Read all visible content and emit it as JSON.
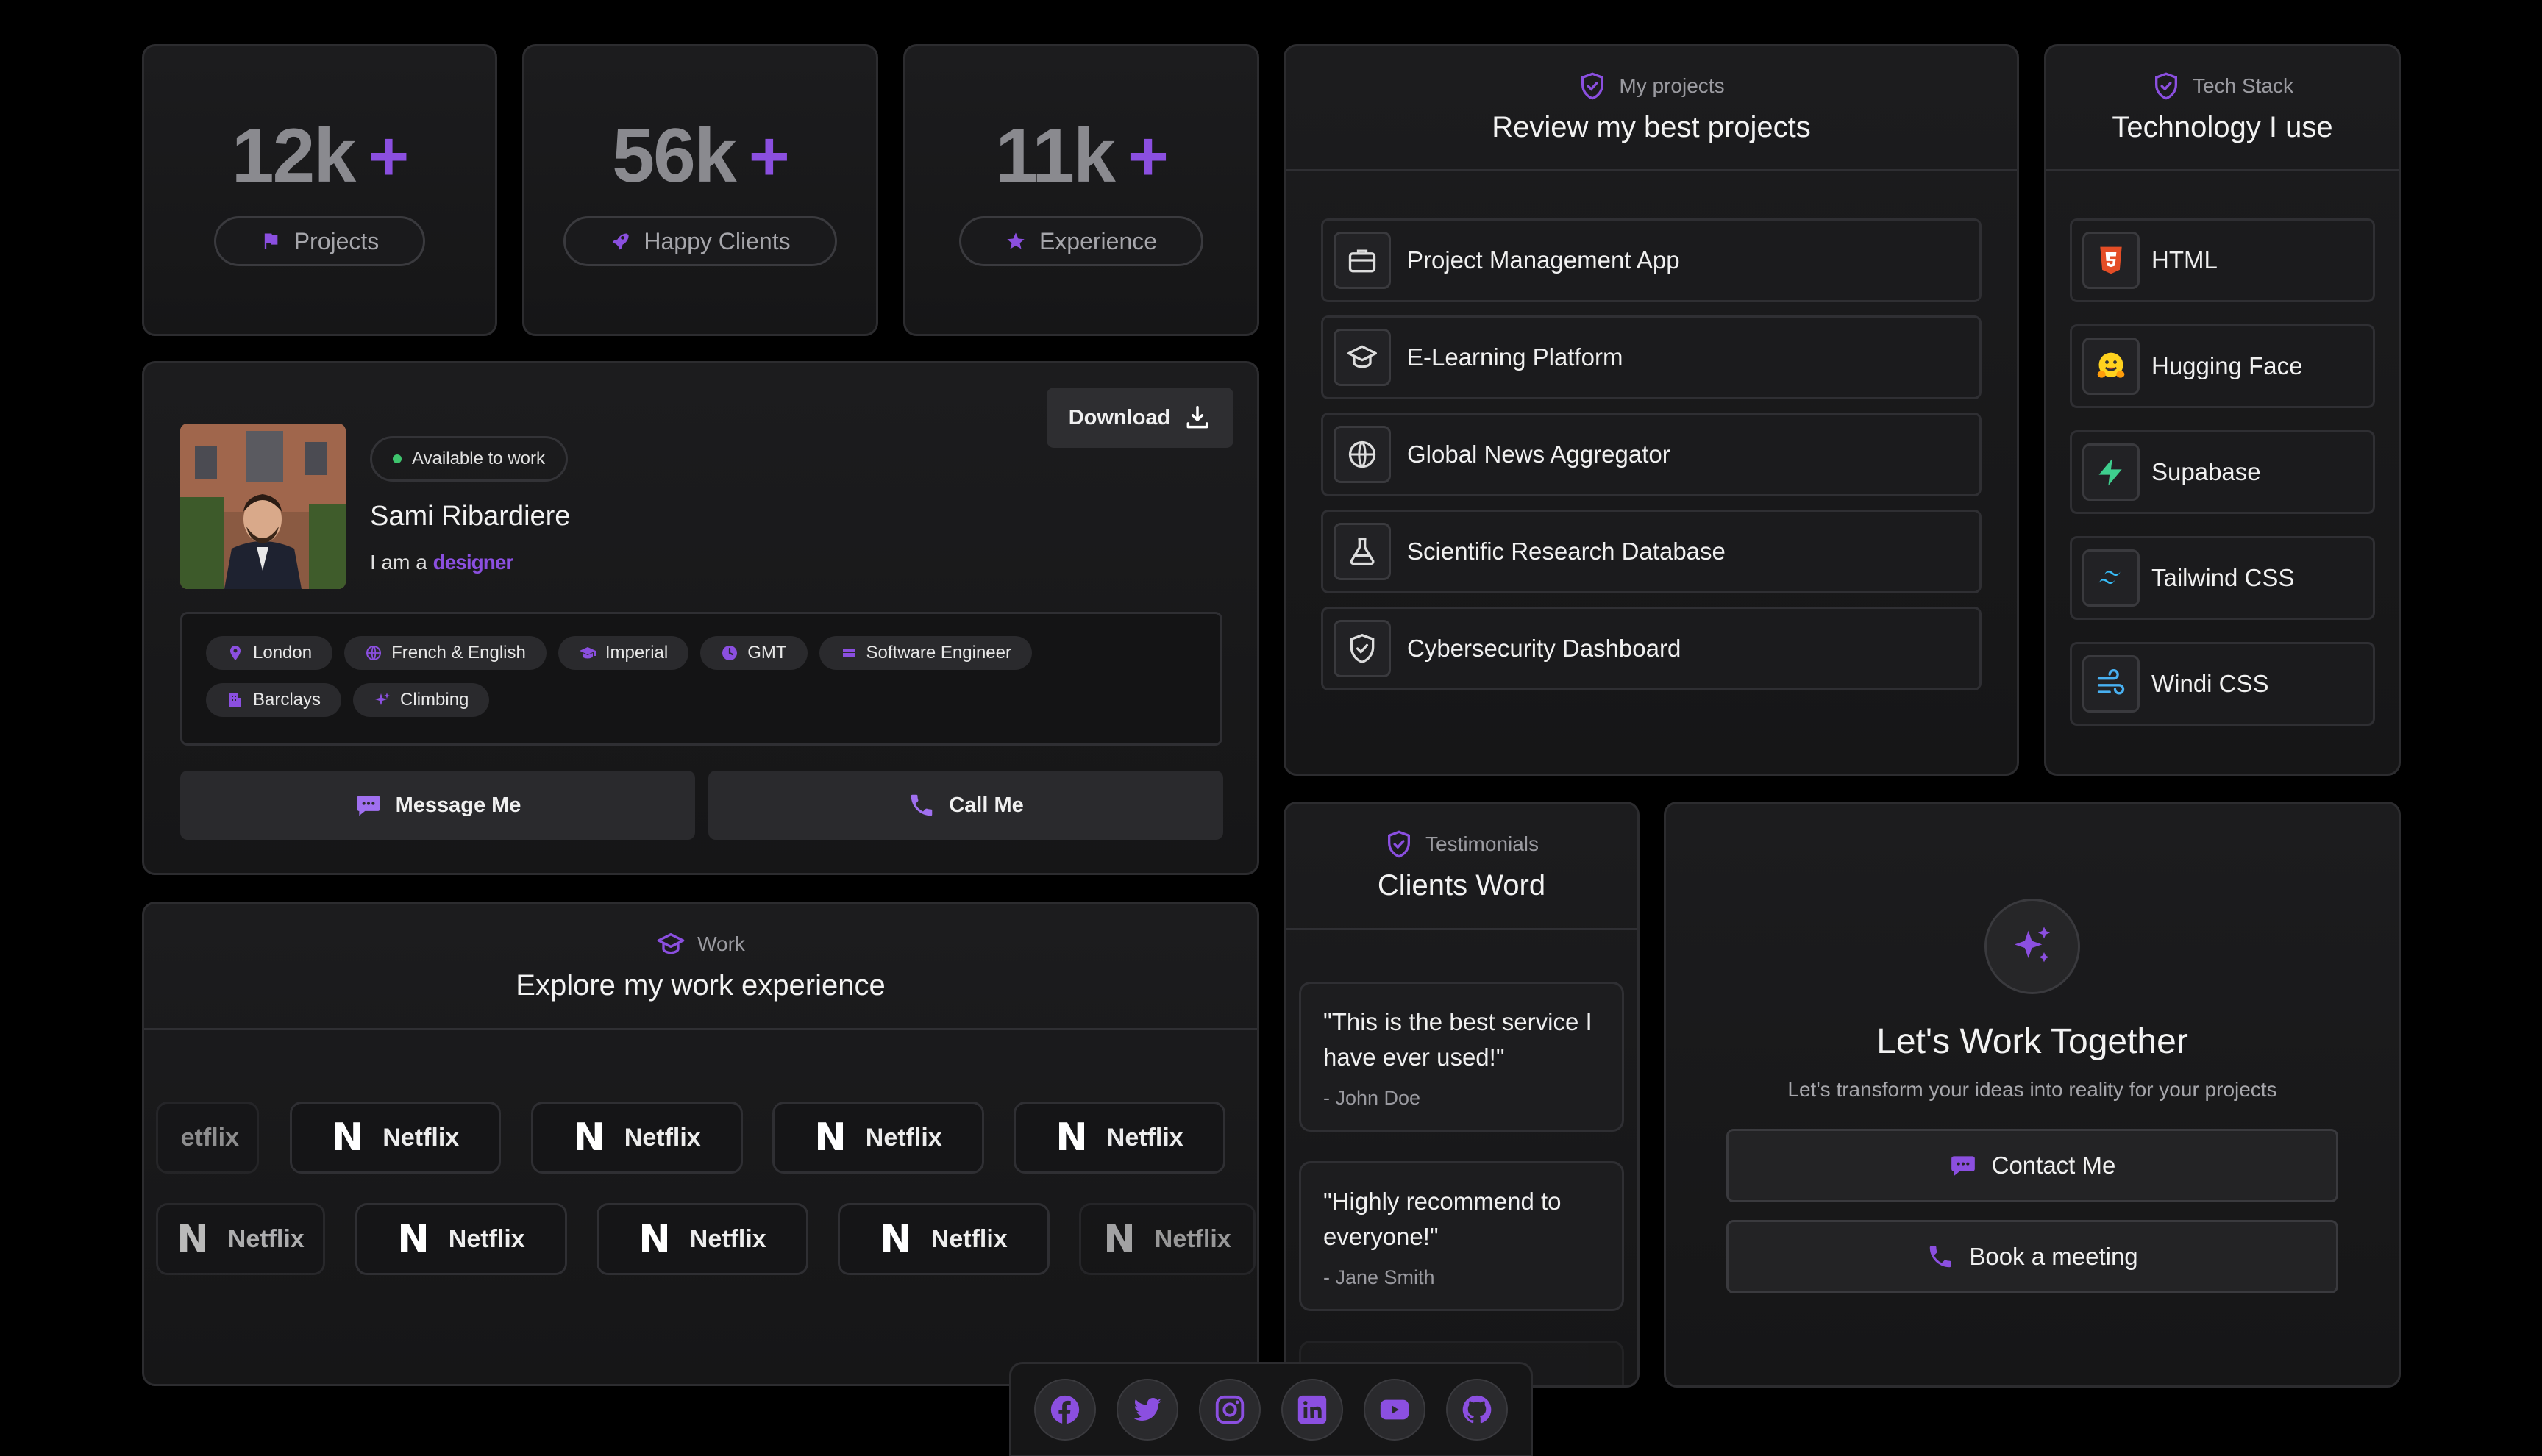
{
  "stats": [
    {
      "number": "12k",
      "plus": "+",
      "label": "Projects",
      "icon": "flag-icon"
    },
    {
      "number": "56k",
      "plus": "+",
      "label": "Happy Clients",
      "icon": "rocket-icon"
    },
    {
      "number": "11k",
      "plus": "+",
      "label": "Experience",
      "icon": "star-icon"
    }
  ],
  "profile": {
    "download_label": "Download",
    "availability": "Available to work",
    "name": "Sami Ribardiere",
    "role_prefix": "I am a",
    "role_word": "designer",
    "tags": [
      "London",
      "French & English",
      "Imperial",
      "GMT",
      "Software Engineer",
      "Barclays",
      "Climbing"
    ],
    "message_label": "Message Me",
    "call_label": "Call Me"
  },
  "projects": {
    "subtitle": "My projects",
    "title": "Review my best projects",
    "items": [
      "Project Management App",
      "E-Learning Platform",
      "Global News Aggregator",
      "Scientific Research Database",
      "Cybersecurity Dashboard"
    ]
  },
  "tech": {
    "subtitle": "Tech Stack",
    "title": "Technology I use",
    "items": [
      "HTML",
      "Hugging Face",
      "Supabase",
      "Tailwind CSS",
      "Windi CSS"
    ]
  },
  "work": {
    "subtitle": "Work",
    "title": "Explore my work experience",
    "company": "Netflix",
    "partial_company": "etflix",
    "partial_company_end": "Netflix"
  },
  "testimonials": {
    "subtitle": "Testimonials",
    "title": "Clients Word",
    "items": [
      {
        "quote": "\"This is the best service I have ever used!\"",
        "author": "- John Doe"
      },
      {
        "quote": "\"Highly recommend to everyone!\"",
        "author": "- Jane Smith"
      }
    ]
  },
  "cta": {
    "title": "Let's Work Together",
    "subtitle": "Let's transform your ideas into reality for your projects",
    "contact_label": "Contact Me",
    "meeting_label": "Book a meeting"
  },
  "social": [
    "facebook-icon",
    "twitter-icon",
    "instagram-icon",
    "linkedin-icon",
    "youtube-icon",
    "github-icon"
  ],
  "colors": {
    "accent": "#8b4fe0",
    "background": "#000000",
    "card": "#1a1a1c",
    "available_dot": "#3ec46d"
  }
}
